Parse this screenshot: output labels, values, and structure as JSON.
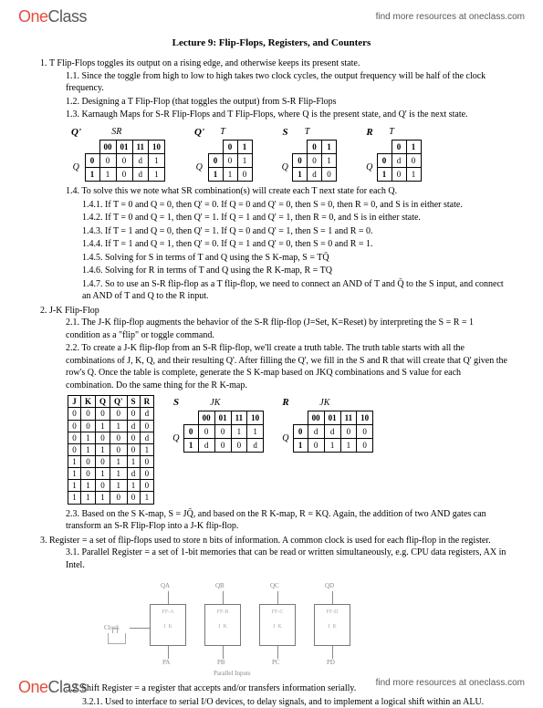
{
  "header": {
    "logo_one": "One",
    "logo_class": "Class",
    "tagline": "find more resources at oneclass.com"
  },
  "title": "Lecture 9: Flip-Flops, Registers, and Counters",
  "sec1": {
    "heading": "T Flip-Flops toggles its output on a rising edge, and otherwise keeps its present state.",
    "p11": "1.1. Since the toggle from high to low to high takes two clock cycles, the output frequency will be half of the clock frequency.",
    "p12": "1.2. Designing a T Flip-Flop (that toggles the output) from S-R Flip-Flops",
    "p13": "1.3. Karnaugh Maps for S-R Flip-Flops and T Flip-Flops, where Q is the present state, and Q' is the next state.",
    "p14": "1.4. To solve this we note what SR combination(s) will create each T next state for each Q.",
    "p141": "1.4.1. If T = 0 and Q = 0, then Q' = 0.  If Q = 0 and Q' = 0, then S = 0, then R = 0, and S is in either state.",
    "p142": "1.4.2. If T = 0 and Q = 1, then Q' = 1.  If Q = 1 and Q' = 1, then R = 0, and S is in either state.",
    "p143": "1.4.3. If T = 1 and Q = 0, then Q' = 1.  If Q = 0 and Q' = 1, then S = 1 and R = 0.",
    "p144": "1.4.4. If T = 1 and Q = 1, then Q' = 0.  If Q = 1 and Q' = 0, then S = 0 and R = 1.",
    "p145": "1.4.5. Solving for S in terms of T and Q using the S K-map, S = TQ̄",
    "p146": "1.4.6. Solving for R in terms of T and Q using the R K-map, R = TQ",
    "p147": "1.4.7. So to use an S-R flip-flop as a T flip-flop, we need to connect an AND of T and Q̄ to the S input, and connect an AND of T and Q to the R input."
  },
  "sec2": {
    "heading": "J-K Flip-Flop",
    "p21": "2.1. The J-K flip-flop augments the behavior of the S-R flip-flop (J=Set, K=Reset) by interpreting the S = R = 1 condition as a \"flip\" or toggle command.",
    "p22": "2.2. To create a J-K flip-flop from an S-R flip-flop, we'll create a truth table.  The truth table starts with all the combinations of J, K, Q, and their resulting Q'.  After filling the Q', we fill in the S and R that will create that Q' given the row's Q.  Once the table is complete, generate the S K-map based on JKQ combinations and S value for each combination.  Do the same thing for the R K-map.",
    "p23": "2.3. Based on the S K-map, S = JQ̄, and based on the R K-map, R = KQ.  Again, the addition of two AND gates can transform an S-R Flip-Flop into a J-K flip-flop."
  },
  "sec3": {
    "heading": "Register = a set of flip-flops used to store n bits of information.  A common clock is used for each flip-flop in the register.",
    "p31": "3.1. Parallel Register = a set of 1-bit memories that can be read or written simultaneously, e.g. CPU data registers, AX in Intel.",
    "p32": "3.2. Shift Register = a register that accepts and/or transfers information serially.",
    "p321": "3.2.1. Used to interface to serial I/O devices, to delay signals, and to implement a logical shift within an ALU."
  },
  "kmap_sr": {
    "label": "Q'",
    "collabel": "SR",
    "cols": [
      "00",
      "01",
      "11",
      "10"
    ],
    "row_labels": [
      "0",
      "1"
    ],
    "rows": [
      [
        "0",
        "0",
        "d",
        "1"
      ],
      [
        "1",
        "0",
        "d",
        "1"
      ]
    ]
  },
  "kmap_t": {
    "label": "Q'",
    "collabel": "T",
    "cols": [
      "0",
      "1"
    ],
    "row_labels": [
      "0",
      "1"
    ],
    "rows": [
      [
        "0",
        "1"
      ],
      [
        "1",
        "0"
      ]
    ]
  },
  "kmap_s": {
    "label": "S",
    "collabel": "T",
    "cols": [
      "0",
      "1"
    ],
    "row_labels": [
      "0",
      "1"
    ],
    "rows": [
      [
        "0",
        "1"
      ],
      [
        "d",
        "0"
      ]
    ]
  },
  "kmap_r": {
    "label": "R",
    "collabel": "T",
    "cols": [
      "0",
      "1"
    ],
    "row_labels": [
      "0",
      "1"
    ],
    "rows": [
      [
        "d",
        "0"
      ],
      [
        "0",
        "1"
      ]
    ]
  },
  "jktruth": {
    "headers": [
      "J",
      "K",
      "Q",
      "Q'",
      "S",
      "R"
    ],
    "rows": [
      [
        "0",
        "0",
        "0",
        "0",
        "0",
        "d"
      ],
      [
        "0",
        "0",
        "1",
        "1",
        "d",
        "0"
      ],
      [
        "0",
        "1",
        "0",
        "0",
        "0",
        "d"
      ],
      [
        "0",
        "1",
        "1",
        "0",
        "0",
        "1"
      ],
      [
        "1",
        "0",
        "0",
        "1",
        "1",
        "0"
      ],
      [
        "1",
        "0",
        "1",
        "1",
        "d",
        "0"
      ],
      [
        "1",
        "1",
        "0",
        "1",
        "1",
        "0"
      ],
      [
        "1",
        "1",
        "1",
        "0",
        "0",
        "1"
      ]
    ]
  },
  "kmap_jk_s": {
    "label": "S",
    "collabel": "JK",
    "cols": [
      "00",
      "01",
      "11",
      "10"
    ],
    "row_labels": [
      "0",
      "1"
    ],
    "rows": [
      [
        "0",
        "0",
        "1",
        "1"
      ],
      [
        "d",
        "0",
        "0",
        "d"
      ]
    ]
  },
  "kmap_jk_r": {
    "label": "R",
    "collabel": "JK",
    "cols": [
      "00",
      "01",
      "11",
      "10"
    ],
    "row_labels": [
      "0",
      "1"
    ],
    "rows": [
      [
        "d",
        "d",
        "0",
        "0"
      ],
      [
        "0",
        "1",
        "1",
        "0"
      ]
    ]
  },
  "regdiag": {
    "boxes": [
      "FF-A",
      "FF-B",
      "FF-C",
      "FF-D"
    ],
    "outs": [
      "QA",
      "QB",
      "QC",
      "QD"
    ],
    "ins": [
      "PA",
      "PB",
      "PC",
      "PD"
    ],
    "clock": "Clock",
    "plabel": "Parallel Inputs"
  },
  "q_label": "Q",
  "footer": {
    "logo_one": "One",
    "logo_class": "Class",
    "tagline": "find more resources at oneclass.com"
  },
  "colors": {
    "text": "#000000",
    "bg": "#ffffff",
    "logo_red": "#e74c3c",
    "logo_grey": "#5a5a5a",
    "diagram_grey": "#888888"
  }
}
